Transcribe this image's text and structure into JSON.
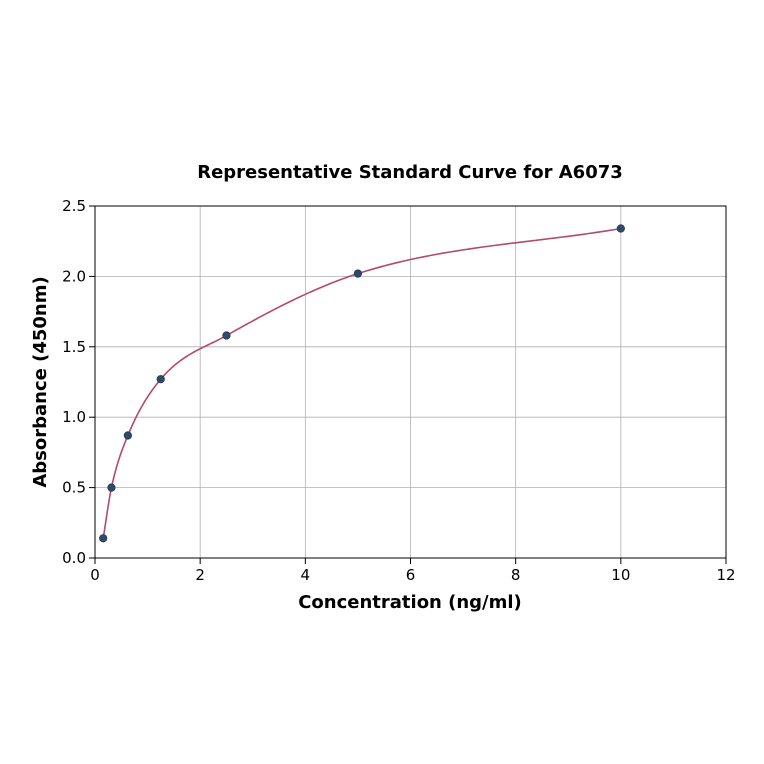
{
  "chart_data": {
    "type": "scatter",
    "title": "Representative Standard Curve for A6073",
    "xlabel": "Concentration (ng/ml)",
    "ylabel": "Absorbance (450nm)",
    "xlim": [
      0,
      12
    ],
    "ylim": [
      0,
      2.5
    ],
    "xticks": [
      "0",
      "2",
      "4",
      "6",
      "8",
      "10",
      "12"
    ],
    "yticks": [
      "0.0",
      "0.5",
      "1.0",
      "1.5",
      "2.0",
      "2.5"
    ],
    "grid": true,
    "x": [
      0.156,
      0.313,
      0.625,
      1.25,
      2.5,
      5,
      10
    ],
    "y": [
      0.14,
      0.5,
      0.87,
      1.27,
      1.58,
      2.02,
      2.34
    ],
    "point_color": "#2e4a6b",
    "curve_color": "#b5496b",
    "fit_curve": true
  }
}
